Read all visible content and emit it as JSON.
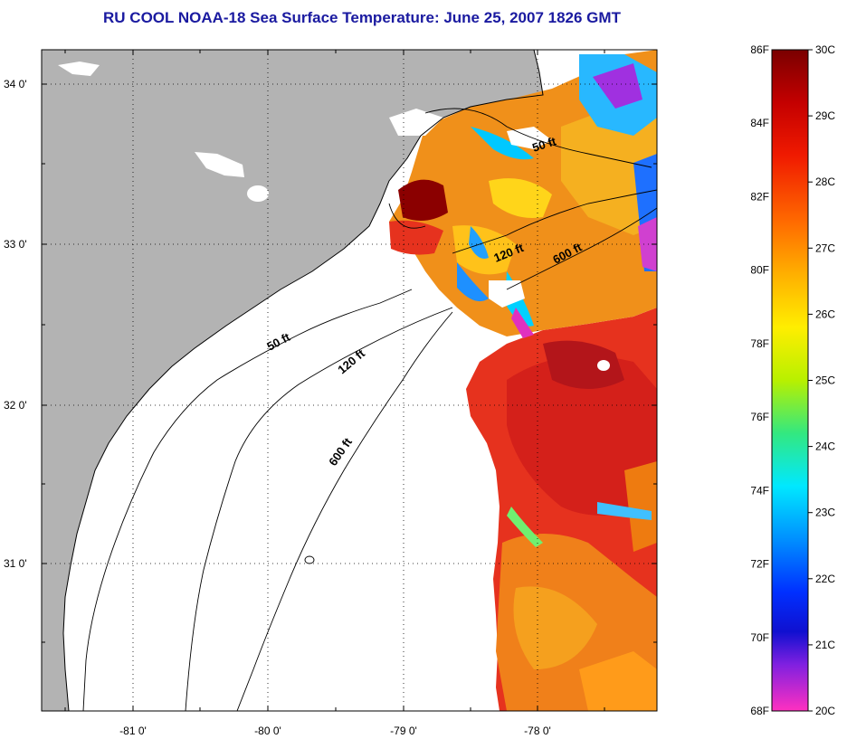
{
  "title": "RU COOL  NOAA-18  Sea Surface Temperature:  June 25, 2007 1826 GMT",
  "lat_labels": [
    "34 0'",
    "33 0'",
    "32 0'",
    "31 0'"
  ],
  "lon_labels": [
    "-81 0'",
    "-80 0'",
    "-79 0'",
    "-78 0'"
  ],
  "contours": {
    "c50_north": "50 ft",
    "c120_north": "120 ft",
    "c600_north": "600 ft",
    "c50_south": "50 ft",
    "c120_south": "120 ft",
    "c600_south": "600 ft"
  },
  "colorbar": {
    "fahrenheit": [
      "86F",
      "84F",
      "82F",
      "80F",
      "78F",
      "76F",
      "74F",
      "72F",
      "70F",
      "68F"
    ],
    "celsius": [
      "30C",
      "29C",
      "28C",
      "27C",
      "26C",
      "25C",
      "24C",
      "23C",
      "22C",
      "21C",
      "20C"
    ]
  },
  "colors": {
    "land": "#b3b3b3",
    "title": "#1a1aa0",
    "warm": "#e6321e",
    "hot": "#8b0000",
    "cool": "#1e90ff"
  }
}
